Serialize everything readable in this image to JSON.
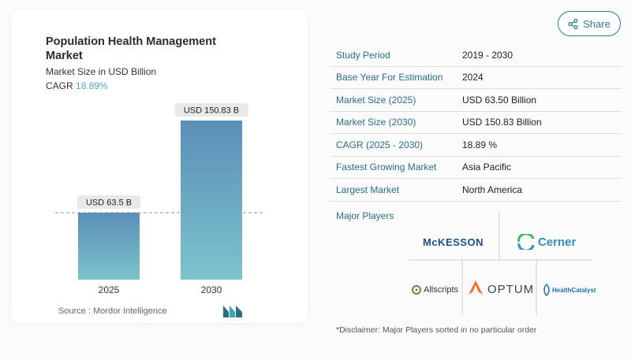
{
  "share": {
    "label": "Share"
  },
  "chart_data": {
    "type": "bar",
    "title": "Population Health Management Market",
    "subtitle": "Market Size in USD Billion",
    "cagr_label": "CAGR",
    "cagr_value": "18.89%",
    "categories": [
      "2025",
      "2030"
    ],
    "values": [
      63.5,
      150.83
    ],
    "data_labels": [
      "USD 63.5 B",
      "USD 150.83 B"
    ],
    "colors": [
      "#5b8fb9",
      "#7cc3cb"
    ]
  },
  "source": "Source :  Mordor Intelligence",
  "table": [
    {
      "key": "Study Period",
      "value": "2019 - 2030"
    },
    {
      "key": "Base Year For Estimation",
      "value": "2024"
    },
    {
      "key": "Market Size (2025)",
      "value": "USD 63.50 Billion"
    },
    {
      "key": "Market Size (2030)",
      "value": "USD 150.83 Billion"
    },
    {
      "key": "CAGR (2025 - 2030)",
      "value": "18.89 %"
    },
    {
      "key": "Fastest Growing Market",
      "value": "Asia Pacific"
    },
    {
      "key": "Largest Market",
      "value": "North America"
    }
  ],
  "players": {
    "title": "Major Players",
    "mckesson": "McKESSON",
    "cerner": "Cerner",
    "allscripts": "Allscripts",
    "optum": "OPTUM",
    "healthcatalyst": "HealthCatalyst"
  },
  "disclaimer": "*Disclaimer: Major Players sorted in no particular order"
}
